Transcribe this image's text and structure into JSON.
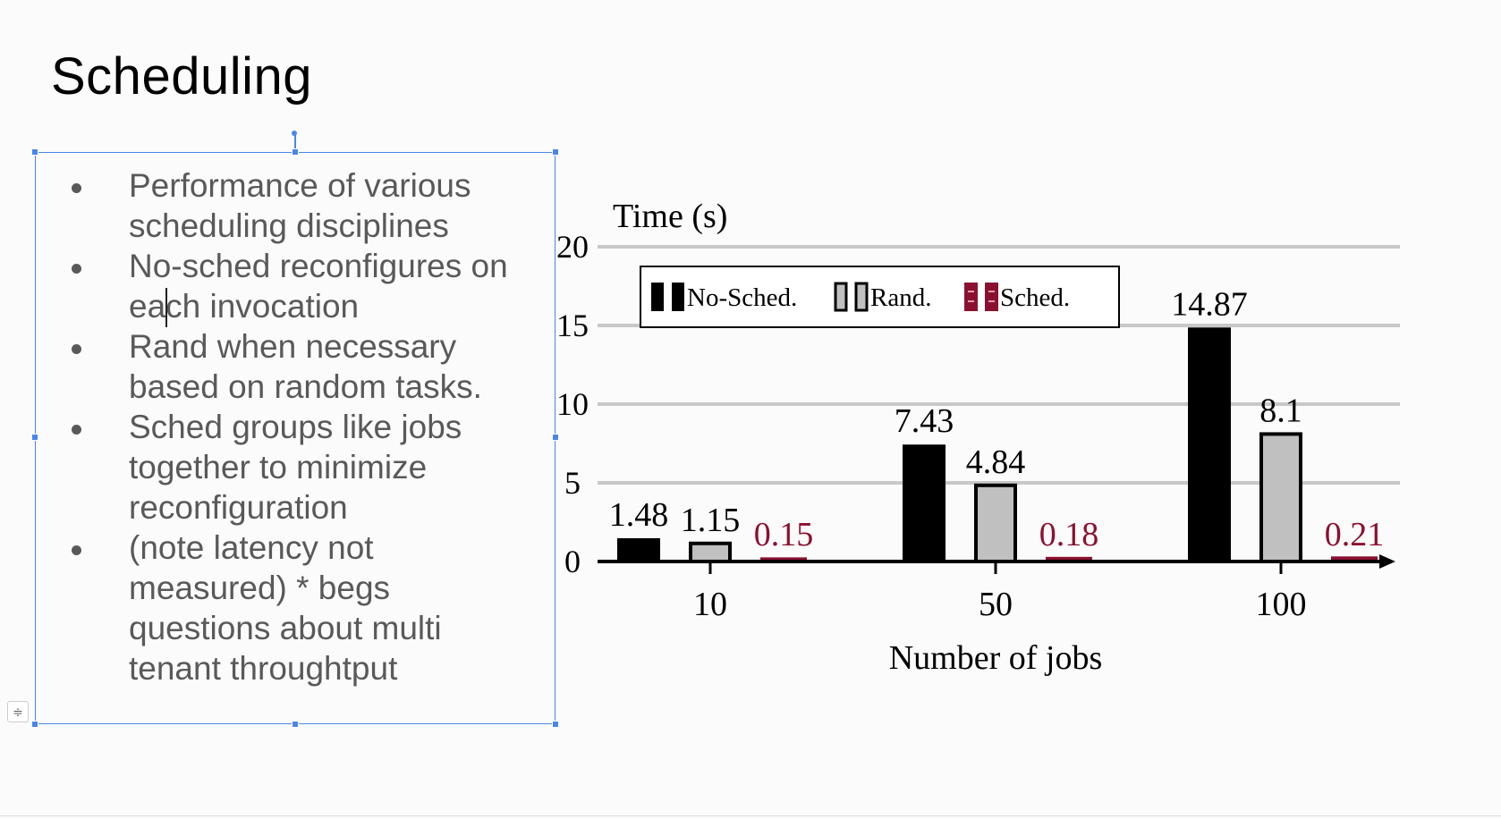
{
  "slide": {
    "title": "Scheduling",
    "bullets": [
      "Performance of various scheduling disciplines",
      "No-sched reconfigures on each invocation",
      "Rand when necessary based on random tasks.",
      "Sched groups like jobs together to minimize reconfiguration",
      "(note latency not measured) * begs questions about multi tenant throughtput"
    ]
  },
  "chart_data": {
    "type": "bar",
    "ylabel": "Time (s)",
    "xlabel": "Number of jobs",
    "categories": [
      "10",
      "50",
      "100"
    ],
    "ylim": [
      0,
      20
    ],
    "yticks": [
      0,
      5,
      10,
      15,
      20
    ],
    "grid": true,
    "legend_position": "top-left",
    "series": [
      {
        "name": "No-Sched.",
        "values": [
          1.48,
          7.43,
          14.87
        ],
        "labels": [
          "1.48",
          "7.43",
          "14.87"
        ],
        "color": "#000000",
        "label_color": "#000000"
      },
      {
        "name": "Rand.",
        "values": [
          1.15,
          4.84,
          8.1
        ],
        "labels": [
          "1.15",
          "4.84",
          "8.1"
        ],
        "color": "#c0c0c0",
        "label_color": "#000000"
      },
      {
        "name": "Sched.",
        "values": [
          0.15,
          0.18,
          0.21
        ],
        "labels": [
          "0.15",
          "0.18",
          "0.21"
        ],
        "color": "#8b1030",
        "label_color": "#8b1030"
      }
    ]
  },
  "colors": {
    "selection": "#4a86e8",
    "bullet_text": "#595959"
  }
}
